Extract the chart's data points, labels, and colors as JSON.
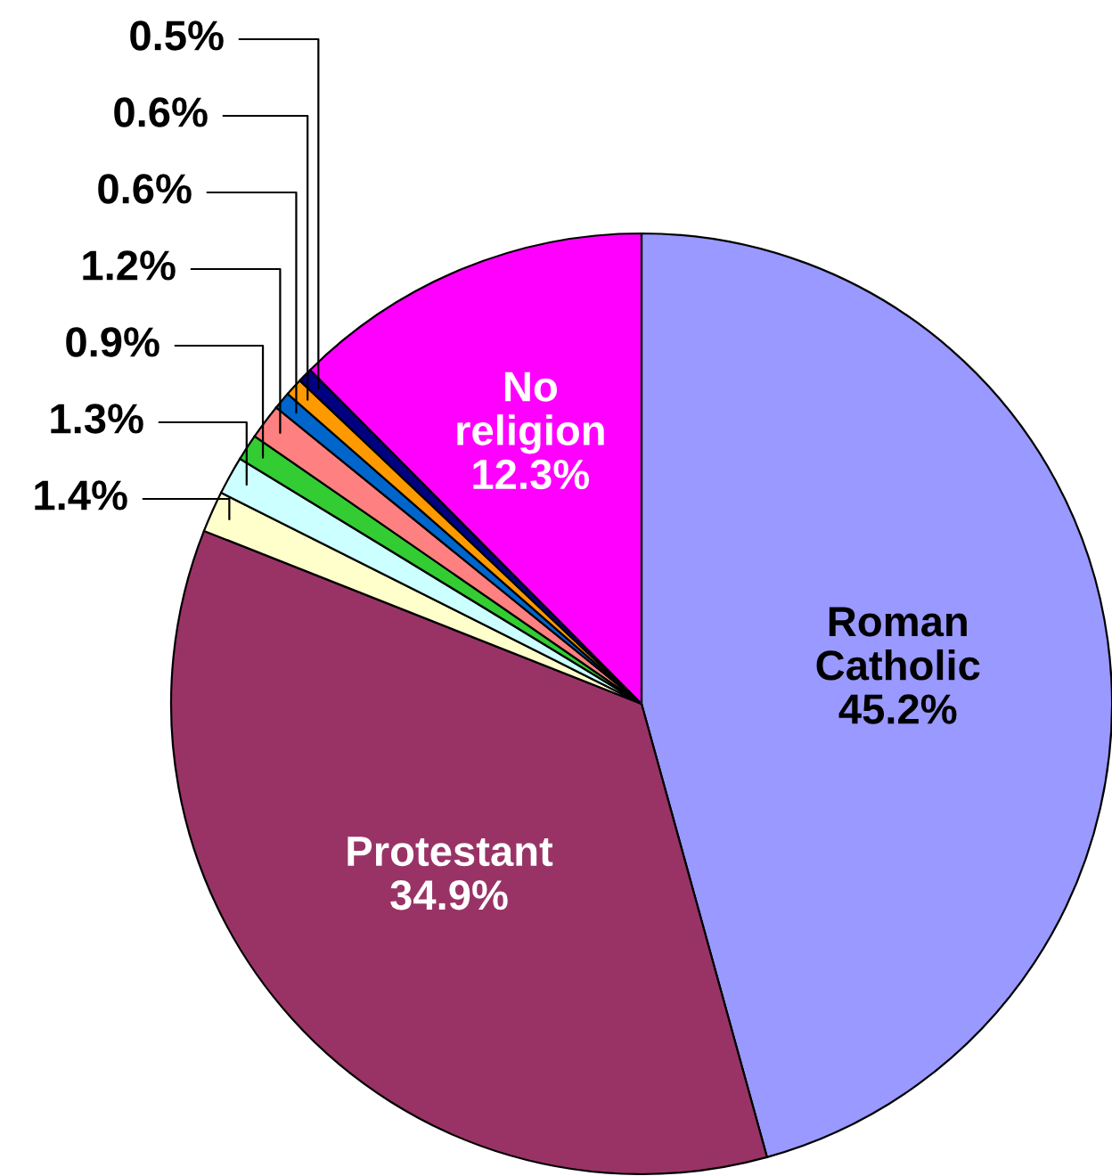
{
  "chart_data": {
    "type": "pie",
    "categories": [
      "Roman\nCatholic",
      "Protestant",
      null,
      null,
      null,
      null,
      null,
      null,
      null,
      "No\nreligion"
    ],
    "values": [
      45.2,
      34.9,
      1.4,
      1.3,
      0.9,
      1.2,
      0.6,
      0.6,
      0.5,
      12.3
    ],
    "value_labels": [
      "45.2%",
      "34.9%",
      "1.4%",
      "1.3%",
      "0.9%",
      "1.2%",
      "0.6%",
      "0.6%",
      "0.5%",
      "12.3%"
    ],
    "colors": [
      "#9999ff",
      "#993366",
      "#ffffcc",
      "#ccffff",
      "#33cc33",
      "#ff8080",
      "#0066cc",
      "#ff9900",
      "#000080",
      "#ff00ff"
    ],
    "legend": false
  }
}
